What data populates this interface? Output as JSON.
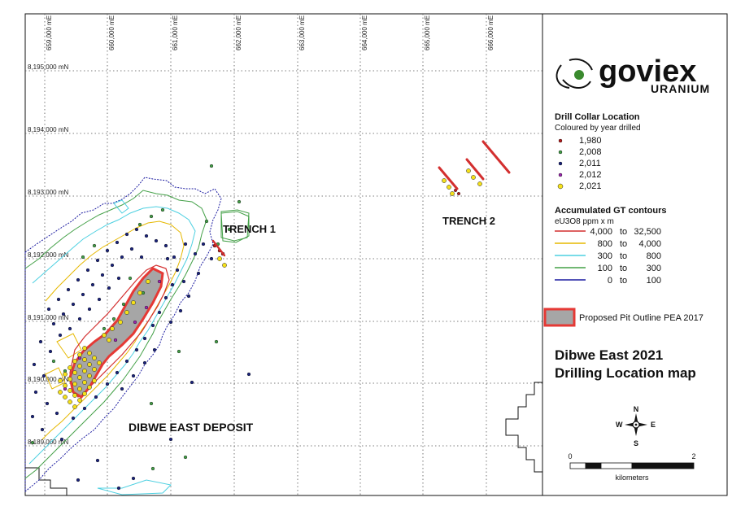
{
  "grid": {
    "eastings": [
      "659,000 mE",
      "660,000 mE",
      "661,000 mE",
      "662,000 mE",
      "663,000 mE",
      "664,000 mE",
      "665,000 mE",
      "666,000 mE"
    ],
    "northings": [
      "8,195,000 mN",
      "8,194,000 mN",
      "8,193,000 mN",
      "8,192,000 mN",
      "8,191,000 mN",
      "8,190,000 mN",
      "8,189,000 mN"
    ]
  },
  "map_labels": {
    "trench1": "TRENCH 1",
    "trench2": "TRENCH 2",
    "deposit": "DIBWE EAST DEPOSIT"
  },
  "logo": {
    "main": "goviex",
    "sub": "URANIUM",
    "accent_color": "#3a8a2e"
  },
  "legend": {
    "collar_title": "Drill Collar Location",
    "collar_subtitle": "Coloured by year drilled",
    "collar_items": [
      {
        "label": "1,980",
        "color": "#b71c1c"
      },
      {
        "label": "2,008",
        "color": "#43a047"
      },
      {
        "label": "2,011",
        "color": "#1a237e"
      },
      {
        "label": "2,012",
        "color": "#9c27b0"
      },
      {
        "label": "2,021",
        "color": "#f5e11a"
      }
    ],
    "gt_title": "Accumulated GT contours",
    "gt_subtitle": "eU3O8 ppm x m",
    "gt_items": [
      {
        "from": "4,000",
        "to": "32,500",
        "color": "#d32f2f"
      },
      {
        "from": "800",
        "to": "4,000",
        "color": "#e6b800"
      },
      {
        "from": "300",
        "to": "800",
        "color": "#4dd0e1"
      },
      {
        "from": "100",
        "to": "300",
        "color": "#43a047"
      },
      {
        "from": "0",
        "to": "100",
        "color": "#1a1aa0"
      }
    ],
    "gt_to_word": "to",
    "pit_label": "Proposed Pit Outline PEA 2017",
    "pit_fill": "#a6a6a6",
    "pit_stroke": "#e53935"
  },
  "title": {
    "line1": "Dibwe East 2021",
    "line2": "Drilling Location map"
  },
  "compass": {
    "n": "N",
    "s": "S",
    "e": "E",
    "w": "W"
  },
  "scale": {
    "start": "0",
    "end": "2",
    "unit": "kilometers"
  }
}
